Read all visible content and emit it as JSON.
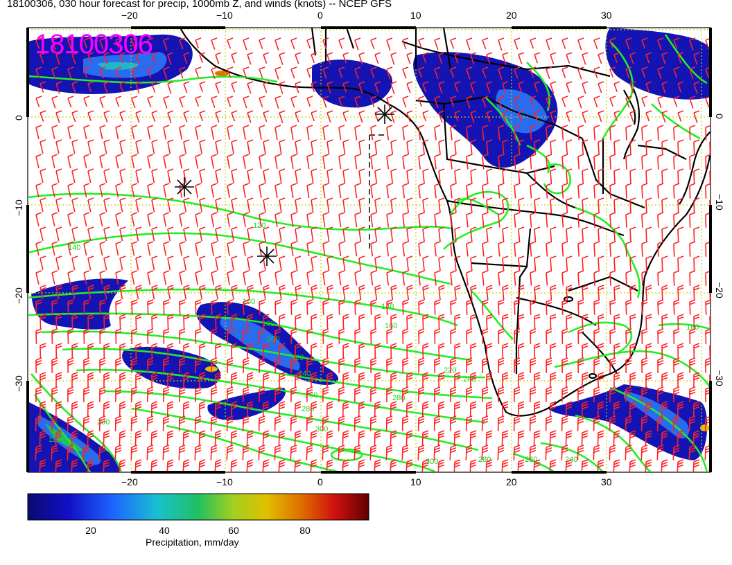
{
  "title": "18100306, 030 hour forecast for precip, 1000mb Z, and winds (knots) -- NCEP GFS",
  "stamp": "18100306",
  "axes": {
    "lon_ticks": [
      "−20",
      "−10",
      "0",
      "10",
      "20",
      "30"
    ],
    "lat_ticks_left": [
      "0",
      "−10",
      "−20",
      "−30"
    ],
    "lat_ticks_right": [
      "0",
      "−10",
      "−20",
      "−30"
    ]
  },
  "colorbar": {
    "label": "Precipitation, mm/day",
    "ticks": [
      "20",
      "40",
      "60",
      "80"
    ],
    "colors": [
      "#0a0a6e",
      "#1010c8",
      "#1e64ff",
      "#18c0d0",
      "#20c060",
      "#a0d020",
      "#e0c000",
      "#e07000",
      "#d01010",
      "#600000"
    ]
  },
  "contour_labels": [
    "120",
    "140",
    "160",
    "180",
    "200",
    "220",
    "240",
    "260",
    "280",
    "300"
  ],
  "colors": {
    "contour": "#22ee22",
    "barb": "#ff2020",
    "grid": "#cccc00",
    "coast": "#000000",
    "stamp": "#ff00ff"
  }
}
